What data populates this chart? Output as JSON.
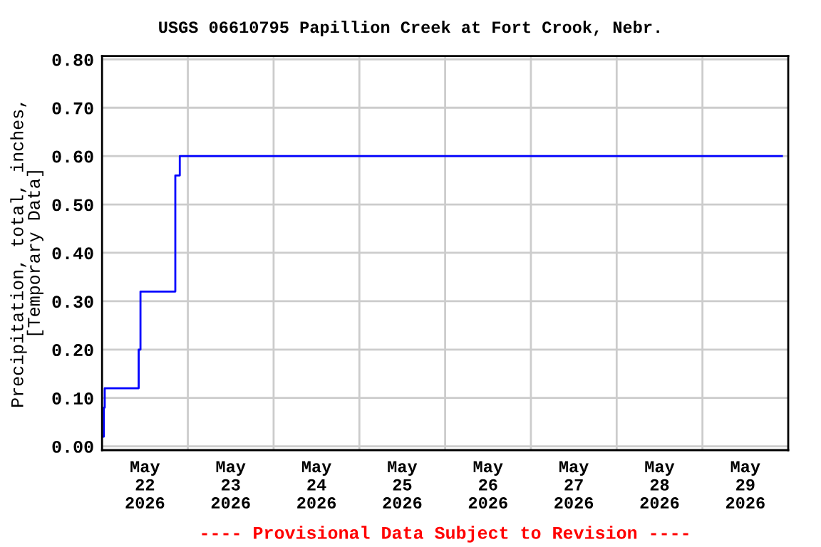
{
  "chart_data": {
    "type": "step",
    "title": "USGS 06610795 Papillion Creek at Fort Crook, Nebr.",
    "ylabel": "Precipitation, total, inches,\n[Temporary Data]",
    "annotations": [
      "---- Provisional Data Subject to Revision ----"
    ],
    "x": [
      "2026-05-22T00:15",
      "2026-05-22T00:30",
      "2026-05-22T00:45",
      "2026-05-22T10:15",
      "2026-05-22T10:45",
      "2026-05-22T20:30",
      "2026-05-22T21:45",
      "2026-05-29T22:15"
    ],
    "series": [
      {
        "color": "#0000ff",
        "values": [
          0.02,
          0.08,
          0.12,
          0.2,
          0.32,
          0.56,
          0.6,
          0.6
        ]
      }
    ],
    "xlim": [
      "2026-05-22",
      "2026-05-30"
    ],
    "xticks": [
      {
        "value": "2026-05-23",
        "label": null
      },
      {
        "value": "2026-05-24",
        "label": null
      },
      {
        "value": "2026-05-25",
        "label": null
      },
      {
        "value": "2026-05-26",
        "label": null
      },
      {
        "value": "2026-05-27",
        "label": null
      },
      {
        "value": "2026-05-28",
        "label": null
      },
      {
        "value": "2026-05-29",
        "label": null
      },
      {
        "value": "2026-05-22T12:00",
        "label": "May\n22\n2026"
      },
      {
        "value": "2026-05-23T12:00",
        "label": "May\n23\n2026"
      },
      {
        "value": "2026-05-24T12:00",
        "label": "May\n24\n2026"
      },
      {
        "value": "2026-05-25T12:00",
        "label": "May\n25\n2026"
      },
      {
        "value": "2026-05-26T12:00",
        "label": "May\n26\n2026"
      },
      {
        "value": "2026-05-27T12:00",
        "label": "May\n27\n2026"
      },
      {
        "value": "2026-05-28T12:00",
        "label": "May\n28\n2026"
      },
      {
        "value": "2026-05-29T12:00",
        "label": "May\n29\n2026"
      }
    ],
    "ylim": [
      -0.008,
      0.807
    ],
    "yticks": [
      {
        "value": 0,
        "label": "0.00"
      },
      {
        "value": 0.1,
        "label": "0.10"
      },
      {
        "value": 0.2,
        "label": "0.20"
      },
      {
        "value": 0.3,
        "label": "0.30"
      },
      {
        "value": 0.4,
        "label": "0.40"
      },
      {
        "value": 0.5,
        "label": "0.50"
      },
      {
        "value": 0.6,
        "label": "0.60"
      },
      {
        "value": 0.7,
        "label": "0.70"
      },
      {
        "value": 0.8,
        "label": "0.80"
      }
    ],
    "grid": true
  }
}
